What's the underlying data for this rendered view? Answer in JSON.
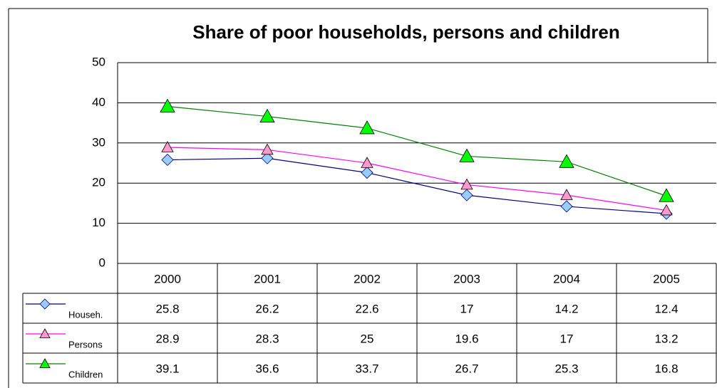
{
  "chart_data": {
    "type": "line",
    "title": "Share of poor households, persons and children",
    "categories": [
      "2000",
      "2001",
      "2002",
      "2003",
      "2004",
      "2005"
    ],
    "series": [
      {
        "name": "Househ.",
        "color": "#000080",
        "marker_color": "#99ccff",
        "marker": "diamond",
        "values": [
          25.8,
          26.2,
          22.6,
          17,
          14.2,
          12.4
        ]
      },
      {
        "name": "Persons",
        "color": "#ff00ff",
        "marker_color": "#ff99cc",
        "marker": "triangle",
        "values": [
          28.9,
          28.3,
          25,
          19.6,
          17,
          13.2
        ]
      },
      {
        "name": "Children",
        "color": "#008000",
        "marker_color": "#00ff00",
        "marker": "triangle",
        "values": [
          39.1,
          36.6,
          33.7,
          26.7,
          25.3,
          16.8
        ]
      }
    ],
    "ylim": [
      0,
      50
    ],
    "yticks": [
      0,
      10,
      20,
      30,
      40,
      50
    ],
    "grid": true
  }
}
